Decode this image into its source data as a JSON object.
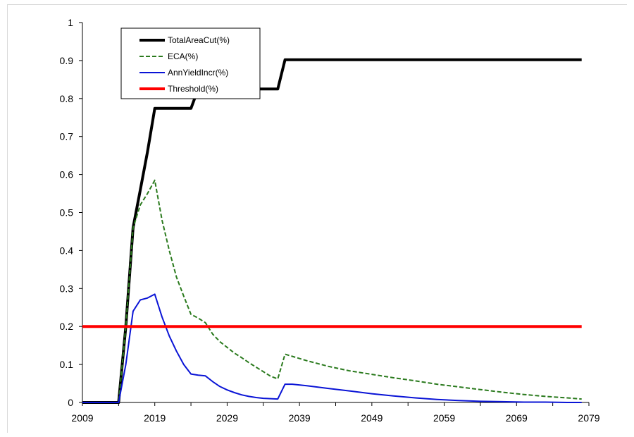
{
  "chart_data": {
    "type": "line",
    "title": "",
    "xlabel": "",
    "ylabel": "",
    "xlim": [
      2009,
      2079
    ],
    "ylim": [
      0,
      1
    ],
    "x_ticks": [
      "2009",
      "2019",
      "2029",
      "2039",
      "2049",
      "2059",
      "2069",
      "2079"
    ],
    "y_ticks": [
      "0",
      "0.1",
      "0.2",
      "0.3",
      "0.4",
      "0.5",
      "0.6",
      "0.7",
      "0.8",
      "0.9",
      "1"
    ],
    "grid": false,
    "legend_position": "top-left",
    "series": [
      {
        "name": "TotalAreaCut(%)",
        "color": "#000000",
        "style": "solid",
        "x": [
          2009,
          2010,
          2011,
          2012,
          2013,
          2014,
          2015,
          2016,
          2017,
          2018,
          2019,
          2020,
          2021,
          2022,
          2023,
          2024,
          2025,
          2026,
          2027,
          2028,
          2029,
          2030,
          2031,
          2032,
          2033,
          2034,
          2035,
          2036,
          2037,
          2040,
          2050,
          2060,
          2070,
          2078
        ],
        "y": [
          0,
          0,
          0,
          0,
          0,
          0,
          0.2,
          0.46,
          0.56,
          0.66,
          0.774,
          0.774,
          0.774,
          0.774,
          0.774,
          0.774,
          0.825,
          0.825,
          0.825,
          0.825,
          0.825,
          0.825,
          0.825,
          0.825,
          0.825,
          0.825,
          0.825,
          0.825,
          0.902,
          0.902,
          0.902,
          0.902,
          0.902,
          0.902
        ]
      },
      {
        "name": "ECA(%)",
        "color": "#2a7a1d",
        "style": "dashed",
        "x": [
          2009,
          2010,
          2011,
          2012,
          2013,
          2014,
          2015,
          2016,
          2017,
          2018,
          2019,
          2020,
          2021,
          2022,
          2023,
          2024,
          2025,
          2026,
          2027,
          2028,
          2029,
          2030,
          2031,
          2032,
          2033,
          2034,
          2035,
          2036,
          2037,
          2040,
          2043,
          2046,
          2049,
          2052,
          2055,
          2058,
          2061,
          2064,
          2067,
          2070,
          2073,
          2076,
          2078
        ],
        "y": [
          0,
          0,
          0,
          0,
          0,
          0,
          0.2,
          0.46,
          0.52,
          0.55,
          0.585,
          0.48,
          0.4,
          0.33,
          0.28,
          0.232,
          0.222,
          0.21,
          0.18,
          0.16,
          0.145,
          0.13,
          0.118,
          0.105,
          0.093,
          0.081,
          0.069,
          0.062,
          0.127,
          0.11,
          0.095,
          0.083,
          0.074,
          0.065,
          0.057,
          0.048,
          0.041,
          0.034,
          0.027,
          0.021,
          0.016,
          0.012,
          0.009
        ]
      },
      {
        "name": "AnnYieldIncr(%)",
        "color": "#0a14d6",
        "style": "solid",
        "x": [
          2009,
          2010,
          2011,
          2012,
          2013,
          2014,
          2015,
          2016,
          2017,
          2018,
          2019,
          2020,
          2021,
          2022,
          2023,
          2024,
          2025,
          2026,
          2027,
          2028,
          2029,
          2030,
          2031,
          2032,
          2033,
          2034,
          2035,
          2036,
          2037,
          2038,
          2040,
          2043,
          2046,
          2049,
          2052,
          2055,
          2058,
          2061,
          2064,
          2067,
          2070,
          2073,
          2076,
          2078
        ],
        "y": [
          0,
          0,
          0,
          0,
          0,
          0,
          0.1,
          0.24,
          0.27,
          0.275,
          0.285,
          0.225,
          0.175,
          0.135,
          0.1,
          0.075,
          0.072,
          0.07,
          0.055,
          0.042,
          0.033,
          0.026,
          0.02,
          0.016,
          0.013,
          0.011,
          0.01,
          0.009,
          0.048,
          0.048,
          0.044,
          0.037,
          0.03,
          0.023,
          0.017,
          0.012,
          0.008,
          0.005,
          0.003,
          0.002,
          0.001,
          0.001,
          0,
          0
        ]
      },
      {
        "name": "Threshold(%)",
        "color": "#ff0000",
        "style": "solid",
        "x": [
          2009,
          2078
        ],
        "y": [
          0.2,
          0.2
        ]
      }
    ]
  }
}
